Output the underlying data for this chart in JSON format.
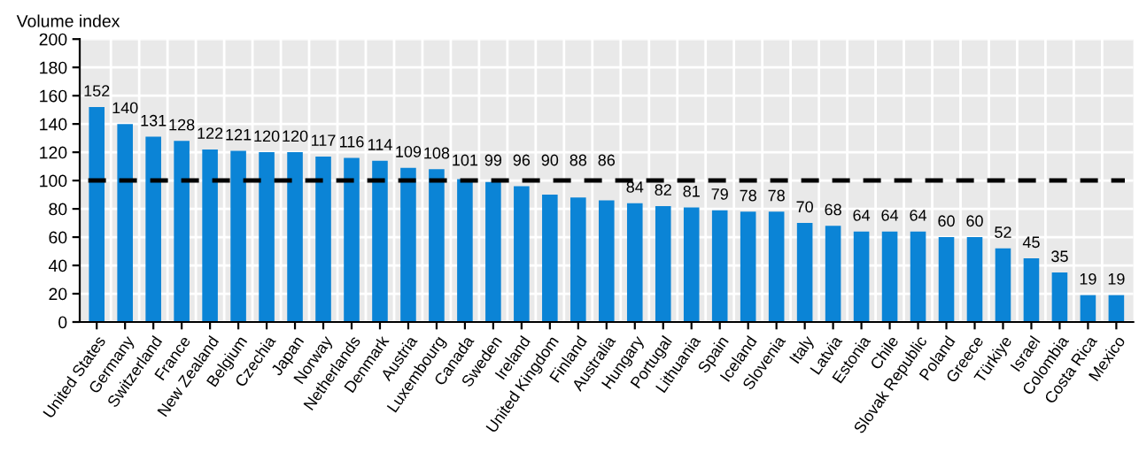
{
  "chart_data": {
    "type": "bar",
    "ylabel": "Volume index",
    "categories": [
      "United States",
      "Germany",
      "Switzerland",
      "France",
      "New Zealand",
      "Belgium",
      "Czechia",
      "Japan",
      "Norway",
      "Netherlands",
      "Denmark",
      "Austria",
      "Luxembourg",
      "Canada",
      "Sweden",
      "Ireland",
      "United Kingdom",
      "Finland",
      "Australia",
      "Hungary",
      "Portugal",
      "Lithuania",
      "Spain",
      "Iceland",
      "Slovenia",
      "Italy",
      "Latvia",
      "Estonia",
      "Chile",
      "Slovak Republic",
      "Poland",
      "Greece",
      "Türkiye",
      "Israel",
      "Colombia",
      "Costa Rica",
      "Mexico"
    ],
    "values": [
      152,
      140,
      131,
      128,
      122,
      121,
      120,
      120,
      117,
      116,
      114,
      109,
      108,
      101,
      99,
      96,
      90,
      88,
      86,
      84,
      82,
      81,
      79,
      78,
      78,
      70,
      68,
      64,
      64,
      64,
      60,
      60,
      52,
      45,
      35,
      19,
      19
    ],
    "color": "#0b84d6",
    "ylim": [
      0,
      200
    ],
    "yticks": [
      0,
      20,
      40,
      60,
      80,
      100,
      120,
      140,
      160,
      180,
      200
    ],
    "grid": true,
    "data_labels": true,
    "ref_lines": [
      {
        "axis": "y",
        "value": 100,
        "color": "#000000",
        "line_style": "dashed"
      }
    ]
  }
}
